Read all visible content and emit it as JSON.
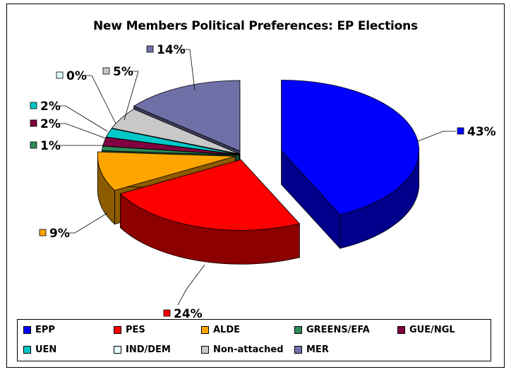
{
  "chart_data": {
    "type": "pie",
    "title": "New Members Political Preferences: EP Elections",
    "legend_position": "bottom",
    "series": [
      {
        "name": "EPP",
        "value": 43,
        "label": "43%",
        "color": "#0000ff"
      },
      {
        "name": "PES",
        "value": 24,
        "label": "24%",
        "color": "#ff0000"
      },
      {
        "name": "ALDE",
        "value": 9,
        "label": "9%",
        "color": "#ffa500"
      },
      {
        "name": "GREENS/EFA",
        "value": 1,
        "label": "1%",
        "color": "#2e8b57"
      },
      {
        "name": "GUE/NGL",
        "value": 2,
        "label": "2%",
        "color": "#800040"
      },
      {
        "name": "UEN",
        "value": 2,
        "label": "2%",
        "color": "#00c8c8"
      },
      {
        "name": "IND/DEM",
        "value": 0,
        "label": "0%",
        "color": "#e0ffff"
      },
      {
        "name": "Non-attached",
        "value": 5,
        "label": "5%",
        "color": "#c8c8c8"
      },
      {
        "name": "MER",
        "value": 14,
        "label": "14%",
        "color": "#7070a8"
      }
    ]
  }
}
